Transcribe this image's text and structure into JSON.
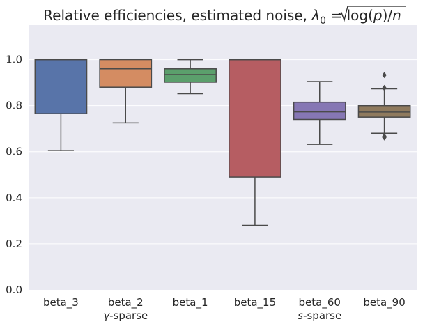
{
  "chart_data": {
    "type": "box",
    "title": "Relative efficiencies, estimated noise, λ₀ = √log(p)/n",
    "title_parts": {
      "prefix": "Relative efficiencies, estimated noise, ",
      "lambda": "λ",
      "sub": "0",
      "eq": " = ",
      "log": "log(",
      "p": "p",
      "close": ")/",
      "n": "n"
    },
    "xlabel": "",
    "ylabel": "",
    "ylim": [
      0.0,
      1.15
    ],
    "yticks": [
      {
        "value": 0.0,
        "label": "0.0"
      },
      {
        "value": 0.2,
        "label": "0.2"
      },
      {
        "value": 0.4,
        "label": "0.4"
      },
      {
        "value": 0.6,
        "label": "0.6"
      },
      {
        "value": 0.8,
        "label": "0.8"
      },
      {
        "value": 1.0,
        "label": "1.0"
      }
    ],
    "grid": true,
    "categories": [
      "beta_3",
      "beta_2",
      "beta_1",
      "beta_15",
      "beta_60",
      "beta_90"
    ],
    "boxes": [
      {
        "name": "beta_3",
        "color": "#5874a9",
        "whisker_low": 0.605,
        "q1": 0.765,
        "median": 1.0,
        "q3": 1.0,
        "whisker_high": 1.0,
        "outliers": []
      },
      {
        "name": "beta_2",
        "color": "#d48c62",
        "whisker_low": 0.725,
        "q1": 0.88,
        "median": 0.96,
        "q3": 1.0,
        "whisker_high": 1.0,
        "outliers": []
      },
      {
        "name": "beta_1",
        "color": "#5b9f6c",
        "whisker_low": 0.852,
        "q1": 0.902,
        "median": 0.935,
        "q3": 0.96,
        "whisker_high": 1.0,
        "outliers": []
      },
      {
        "name": "beta_15",
        "color": "#b65d62",
        "whisker_low": 0.28,
        "q1": 0.49,
        "median": 1.0,
        "q3": 1.0,
        "whisker_high": 1.0,
        "outliers": []
      },
      {
        "name": "beta_60",
        "color": "#8677b4",
        "whisker_low": 0.632,
        "q1": 0.74,
        "median": 0.773,
        "q3": 0.815,
        "whisker_high": 0.905,
        "outliers": []
      },
      {
        "name": "beta_90",
        "color": "#8f7a5e",
        "whisker_low": 0.68,
        "q1": 0.75,
        "median": 0.772,
        "q3": 0.8,
        "whisker_high": 0.873,
        "outliers": [
          0.667,
          0.662,
          0.877,
          0.933
        ]
      }
    ],
    "group_labels": [
      {
        "italic": "γ",
        "rest": "-sparse",
        "under": "beta_2"
      },
      {
        "italic": "s",
        "rest": "-sparse",
        "under": "beta_60"
      }
    ],
    "colors": {
      "background": "#eaeaf2",
      "grid": "#ffffff",
      "line": "#4a4a4a",
      "text": "#262626"
    }
  }
}
